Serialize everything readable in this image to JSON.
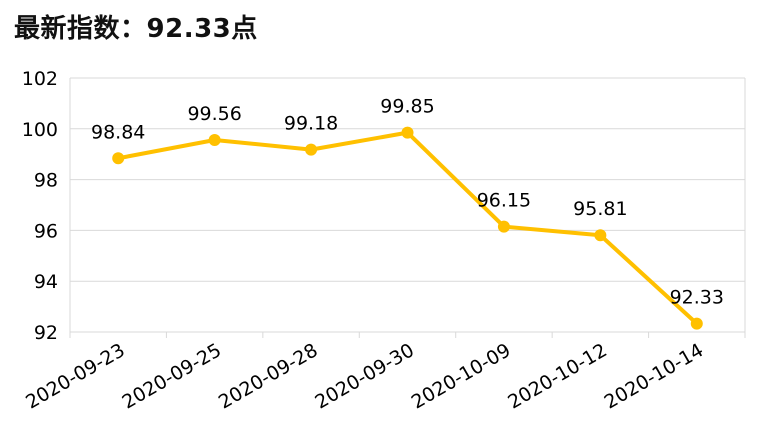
{
  "header": {
    "title_prefix": "最新指数：",
    "title_value": "92.33点"
  },
  "colors": {
    "series": "#FFC000",
    "grid": "#d9d9d9",
    "axis": "#d9d9d9",
    "text": "#000000"
  },
  "chart_data": {
    "type": "line",
    "title": "",
    "xlabel": "",
    "ylabel": "",
    "categories": [
      "2020-09-23",
      "2020-09-25",
      "2020-09-28",
      "2020-09-30",
      "2020-10-09",
      "2020-10-12",
      "2020-10-14"
    ],
    "series": [
      {
        "values": [
          98.84,
          99.56,
          99.18,
          99.85,
          96.15,
          95.81,
          92.33
        ],
        "labels": [
          "98.84",
          "99.56",
          "99.18",
          "99.85",
          "96.15",
          "95.81",
          "92.33"
        ]
      }
    ],
    "ylim": [
      92,
      102
    ],
    "yticks": [
      92,
      94,
      96,
      98,
      100,
      102
    ],
    "ytick_labels": [
      "92",
      "94",
      "96",
      "98",
      "100",
      "102"
    ],
    "grid": true,
    "legend": "none",
    "markers": true,
    "data_labels": true,
    "xtick_rotation": "diagonal"
  }
}
